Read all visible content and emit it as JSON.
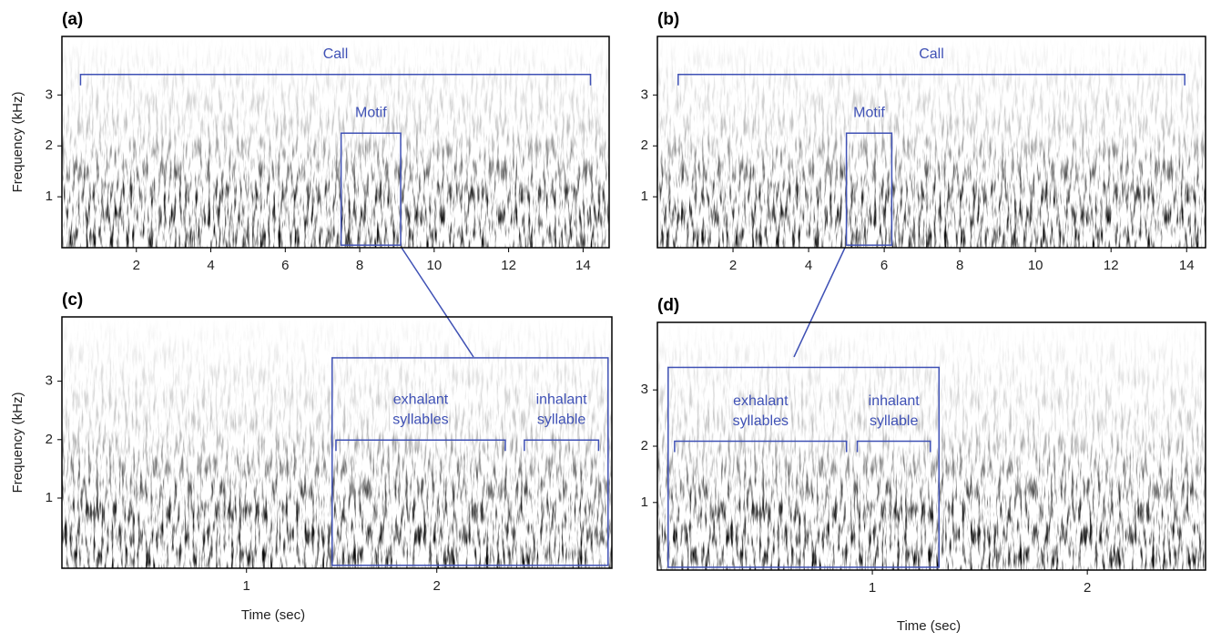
{
  "chart_data": [
    {
      "type": "spectrogram",
      "panel": "(a)",
      "ylabel": "Frequency (kHz)",
      "xlim": [
        0,
        14.7
      ],
      "xticks": [
        2,
        4,
        6,
        8,
        10,
        12,
        14
      ],
      "ylim": [
        0,
        4.15
      ],
      "yticks": [
        1,
        2,
        3
      ],
      "color": "#3f51b5",
      "brackets": [
        {
          "lines": [
            "Call"
          ],
          "xlim": [
            0.5,
            14.2
          ]
        }
      ],
      "boxes": [
        {
          "lines": [
            "Motif"
          ],
          "xlim": [
            7.5,
            9.1
          ],
          "ylim": [
            0.05,
            2.25
          ]
        }
      ]
    },
    {
      "type": "spectrogram",
      "panel": "(b)",
      "xlim": [
        0,
        14.5
      ],
      "xticks": [
        2,
        4,
        6,
        8,
        10,
        12,
        14
      ],
      "ylim": [
        0,
        4.15
      ],
      "yticks": [
        1,
        2,
        3
      ],
      "color": "#3f51b5",
      "brackets": [
        {
          "lines": [
            "Call"
          ],
          "xlim": [
            0.55,
            13.95
          ]
        }
      ],
      "boxes": [
        {
          "lines": [
            "Motif"
          ],
          "xlim": [
            5.0,
            6.2
          ],
          "ylim": [
            0.05,
            2.25
          ]
        }
      ]
    },
    {
      "type": "spectrogram",
      "panel": "(c)",
      "ylabel": "Frequency (kHz)",
      "xlabel": "Time (sec)",
      "xlim": [
        0.03,
        2.92
      ],
      "xticks": [
        1,
        2
      ],
      "ylim": [
        -0.2,
        4.1
      ],
      "yticks": [
        1,
        2,
        3
      ],
      "color": "#3f51b5",
      "brackets": [
        {
          "lines": [
            "exhalant",
            "syllables"
          ],
          "xlim": [
            1.47,
            2.36
          ]
        },
        {
          "lines": [
            "inhalant",
            "syllable"
          ],
          "xlim": [
            2.46,
            2.85
          ]
        }
      ],
      "boxes": [
        {
          "xlim": [
            1.45,
            2.9
          ],
          "ylim": [
            -0.15,
            3.4
          ]
        }
      ]
    },
    {
      "type": "spectrogram",
      "panel": "(d)",
      "xlabel": "Time (sec)",
      "xlim": [
        0,
        2.55
      ],
      "xticks": [
        1,
        2
      ],
      "ylim": [
        -0.2,
        4.2
      ],
      "yticks": [
        1,
        2,
        3
      ],
      "color": "#3f51b5",
      "brackets": [
        {
          "lines": [
            "exhalant",
            "syllables"
          ],
          "xlim": [
            0.08,
            0.88
          ]
        },
        {
          "lines": [
            "inhalant",
            "syllable"
          ],
          "xlim": [
            0.93,
            1.27
          ]
        }
      ],
      "boxes": [
        {
          "xlim": [
            0.05,
            1.31
          ],
          "ylim": [
            -0.15,
            3.4
          ]
        }
      ]
    }
  ]
}
